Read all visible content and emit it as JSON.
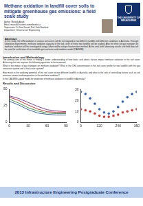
{
  "header": {
    "title": "Methane oxidation in landfill cover soils to mitigate greenhouse gas emissions: a field scale study",
    "author": "Author: Mostafa Azadi",
    "email": "Email: mazadi@student.unimelb.edu.au",
    "supervisors": "Supervisors: Dr Sam Fouad, Prof. Dale Bamford",
    "department": "Department: Infrastructure Engineering",
    "logo": "THE UNIVERSITY OF MELBOURNE"
  },
  "abstract": {
    "heading": "Abstract:",
    "text": "In this study, the CH4 oxidation in various soil covers will be investigated at two different landfills with different conditions in Australia. Through laboratory experiments, methane oxidation capacity of the soil cover of these two landfills will be studied. Also the effect of gas transport on methane oxidation will be investigated using carbon stable isotope fractionation method. At the end, both laboratory results and field data will be used for verification of an available gas emission and oxidation model (CALMIM)."
  },
  "introduction": {
    "heading": "Introduction and Methodology",
    "paragraphs": [
      "The primary aim of this thesis is finding a better understanding of how biotic and abiotic factors impact methane oxidation in the soil cover. Achieving this aim requires the following questions to be answered:",
      "What is the impact of gas transport on methane oxidation? What is the CH4 concentration in the soil cover profile for two landfills with the gas extraction system and a final cover system?",
      "How much is the oxidising potential of the soil cover at two different landfills in Australia and what is the role of controlling factors such as soil moisture content and temperature in the methane oxidation?",
      "Is the CALMIM a good model for prediction of methane oxidation in landfills in Australia?"
    ]
  },
  "results": {
    "heading": "Results and Discussion"
  },
  "chart_data": [
    {
      "type": "line",
      "grid": false,
      "x": [
        0,
        15,
        30,
        45,
        60,
        75,
        90
      ],
      "xlim": [
        0,
        90
      ],
      "xticks": [
        0,
        30,
        60,
        90
      ],
      "ylim": [
        0,
        50
      ],
      "yticks": [
        0,
        25,
        50
      ],
      "series": [
        {
          "color": "#7b3fa0",
          "marker": "none",
          "values": [
            40,
            36,
            30,
            24,
            19,
            17,
            16
          ]
        },
        {
          "color": "#d9302c",
          "marker": "none",
          "values": [
            38,
            33,
            26,
            20,
            16,
            15,
            15
          ]
        },
        {
          "color": "#3a9a3a",
          "marker": "none",
          "values": [
            35,
            29,
            22,
            17,
            14,
            13,
            13
          ]
        },
        {
          "color": "#2f5fb8",
          "marker": "none",
          "values": [
            32,
            26,
            19,
            14,
            12,
            11,
            11
          ]
        }
      ]
    },
    {
      "type": "scatter",
      "grid": false,
      "x": [
        0,
        30,
        60,
        90,
        120,
        150,
        180,
        210,
        240,
        270,
        300,
        330,
        360
      ],
      "xlim": [
        0,
        360
      ],
      "xticks": [
        0,
        120,
        240,
        360
      ],
      "ylim": [
        0,
        30
      ],
      "yticks": [
        0,
        10,
        20,
        30
      ],
      "series": [
        {
          "color": "#2f5fb8",
          "marker": "circle",
          "values": [
            28,
            26,
            22,
            17,
            12,
            9,
            8,
            10,
            14,
            19,
            23,
            26,
            28
          ]
        },
        {
          "color": "#d9302c",
          "marker": "circle",
          "values": [
            12,
            11,
            10,
            8,
            6,
            5,
            5,
            6,
            7,
            9,
            10,
            11,
            12
          ]
        }
      ]
    }
  ],
  "footer": "2013 Infrastructure Engineering Postgraduate Conference"
}
